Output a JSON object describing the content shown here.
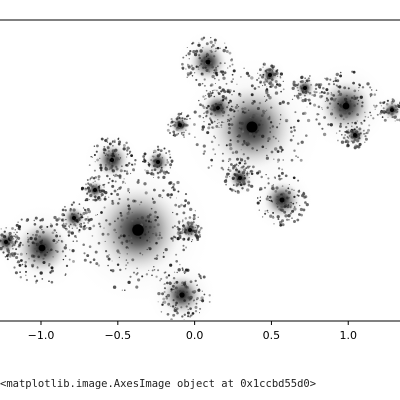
{
  "chart_data": {
    "type": "heatmap",
    "title": "",
    "xlabel": "",
    "ylabel": "",
    "x_ticks": [
      "−1.0",
      "−0.5",
      "0.0",
      "0.5",
      "1.0"
    ],
    "x_tick_values": [
      -1.0,
      -0.5,
      0.0,
      0.5,
      1.0
    ],
    "xlim": [
      -1.28,
      1.35
    ],
    "colormap": "gray_r",
    "description_free": true
  },
  "output": {
    "repr_text": "<matplotlib.image.AxesImage object at 0x1ccbd55d0>"
  },
  "colors": {
    "axis": "#000000",
    "background": "#ffffff",
    "fractal_dark": "#111111"
  }
}
